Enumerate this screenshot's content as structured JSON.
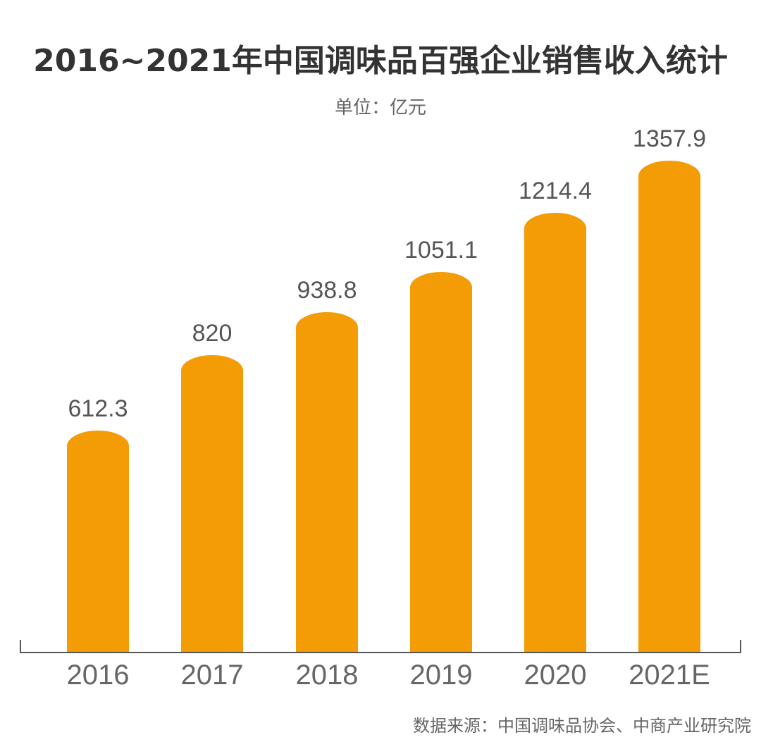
{
  "title": "2016~2021年中国调味品百强企业销售收入统计",
  "unit": "单位：亿元",
  "source": "数据来源：中国调味品协会、中商产业研究院",
  "colors": {
    "bar": "#f39c05",
    "text": "#333333",
    "axis": "#555555"
  },
  "chart_data": {
    "type": "bar",
    "title": "2016~2021年中国调味品百强企业销售收入统计",
    "subtitle": "单位：亿元",
    "categories": [
      "2016",
      "2017",
      "2018",
      "2019",
      "2020",
      "2021E"
    ],
    "values": [
      612.3,
      820,
      938.8,
      1051.1,
      1214.4,
      1357.9
    ],
    "value_labels": [
      "612.3",
      "820",
      "938.8",
      "1051.1",
      "1214.4",
      "1357.9"
    ],
    "xlabel": "",
    "ylabel": "亿元",
    "grid": false,
    "legend": null,
    "source": "数据来源：中国调味品协会、中商产业研究院"
  }
}
